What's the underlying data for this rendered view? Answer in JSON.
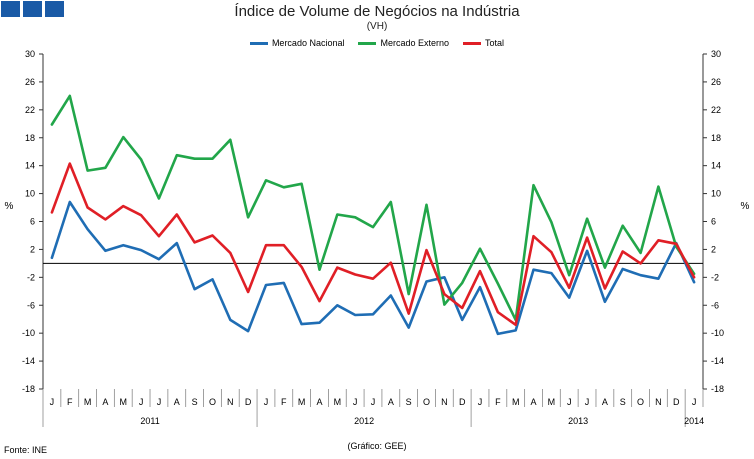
{
  "chart_data": {
    "type": "line",
    "title": "Índice de Volume de Negócios na Indústria",
    "subtitle": "(VH)",
    "ylabel": "%",
    "ylabel_right": "%",
    "ylim": [
      -18,
      30
    ],
    "yticks": [
      30,
      26,
      22,
      18,
      14,
      10,
      6,
      2,
      -2,
      -6,
      -10,
      -14,
      -18
    ],
    "grid": false,
    "legend_position": "top-center",
    "categories": [
      "J",
      "F",
      "M",
      "A",
      "M",
      "J",
      "J",
      "A",
      "S",
      "O",
      "N",
      "D",
      "J",
      "F",
      "M",
      "A",
      "M",
      "J",
      "J",
      "A",
      "S",
      "O",
      "N",
      "D",
      "J",
      "F",
      "M",
      "A",
      "M",
      "J",
      "J",
      "A",
      "S",
      "O",
      "N",
      "D",
      "J"
    ],
    "years": [
      {
        "label": "2011",
        "start": 0,
        "end": 12
      },
      {
        "label": "2012",
        "start": 12,
        "end": 24
      },
      {
        "label": "2013",
        "start": 24,
        "end": 36
      },
      {
        "label": "2014",
        "start": 36,
        "end": 37
      }
    ],
    "series": [
      {
        "name": "Mercado Nacional",
        "color": "#1f6db4",
        "values": [
          0.8,
          8.8,
          4.9,
          1.8,
          2.6,
          1.9,
          0.6,
          2.9,
          -3.7,
          -2.3,
          -8.1,
          -9.7,
          -3.1,
          -2.8,
          -8.7,
          -8.5,
          -6.0,
          -7.4,
          -7.3,
          -4.6,
          -9.2,
          -2.6,
          -2.0,
          -8.1,
          -3.4,
          -10.1,
          -9.6,
          -0.9,
          -1.4,
          -4.9,
          1.8,
          -5.5,
          -0.8,
          -1.7,
          -2.2,
          2.9,
          -2.7
        ]
      },
      {
        "name": "Mercado Externo",
        "color": "#22a64a",
        "values": [
          19.9,
          24.0,
          13.3,
          13.7,
          18.1,
          14.9,
          9.3,
          15.5,
          15.0,
          15.0,
          17.7,
          6.6,
          11.9,
          10.9,
          11.4,
          -0.9,
          7.0,
          6.6,
          5.2,
          8.8,
          -4.4,
          8.4,
          -5.9,
          -2.8,
          2.1,
          -2.9,
          -8.1,
          11.2,
          5.9,
          -1.7,
          6.4,
          -0.6,
          5.4,
          1.5,
          11.0,
          2.4,
          -1.5
        ]
      },
      {
        "name": "Total",
        "color": "#e01f26",
        "values": [
          7.3,
          14.3,
          8.0,
          6.3,
          8.2,
          6.9,
          3.9,
          7.0,
          3.0,
          4.0,
          1.5,
          -4.1,
          2.6,
          2.6,
          -0.5,
          -5.4,
          -0.6,
          -1.6,
          -2.2,
          0.1,
          -7.2,
          1.9,
          -4.4,
          -6.4,
          -1.1,
          -7.0,
          -8.8,
          3.9,
          1.6,
          -3.5,
          3.7,
          -3.6,
          1.7,
          0.0,
          3.3,
          2.8,
          -2.0
        ]
      }
    ]
  },
  "source_text": "Fonte: INE",
  "credit_text": "(Gráfico: GEE)",
  "colors": {
    "logo": "#1a5aa6",
    "axis": "#333333"
  }
}
